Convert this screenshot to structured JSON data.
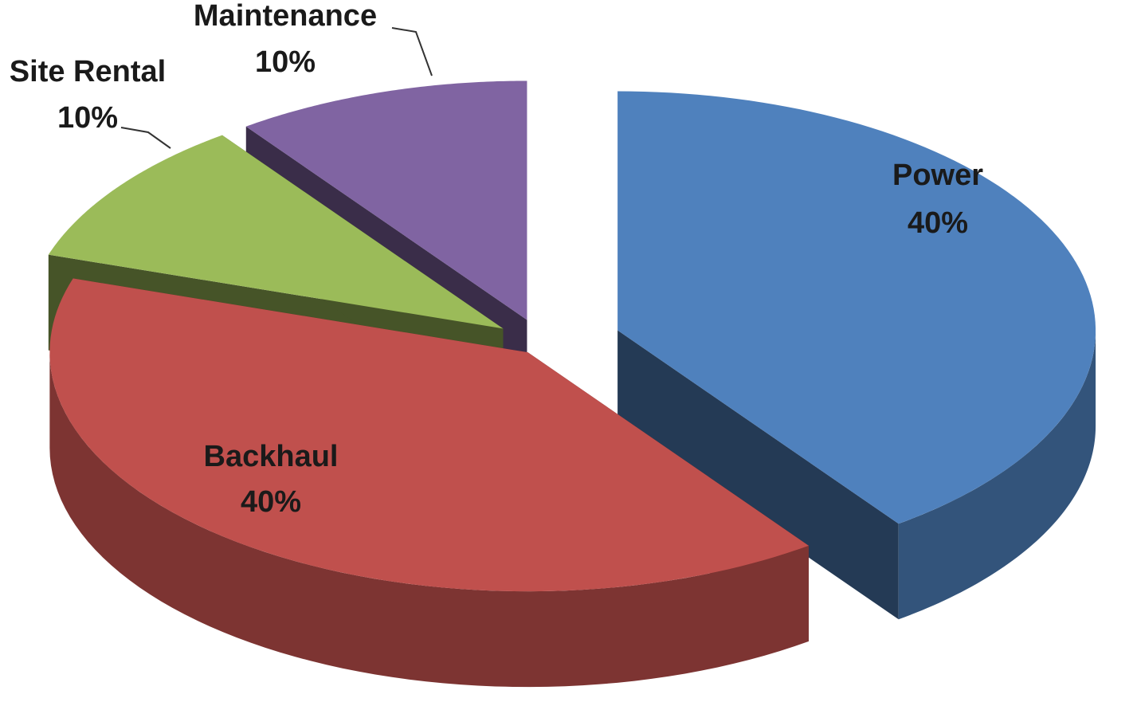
{
  "chart_data": {
    "type": "pie",
    "categories": [
      "Power",
      "Backhaul",
      "Site Rental",
      "Maintenance"
    ],
    "values": [
      40,
      40,
      10,
      10
    ],
    "value_labels": [
      "40%",
      "40%",
      "10%",
      "10%"
    ],
    "colors": [
      "#4f81bd",
      "#c0504d",
      "#9bbb59",
      "#8064a2"
    ]
  }
}
